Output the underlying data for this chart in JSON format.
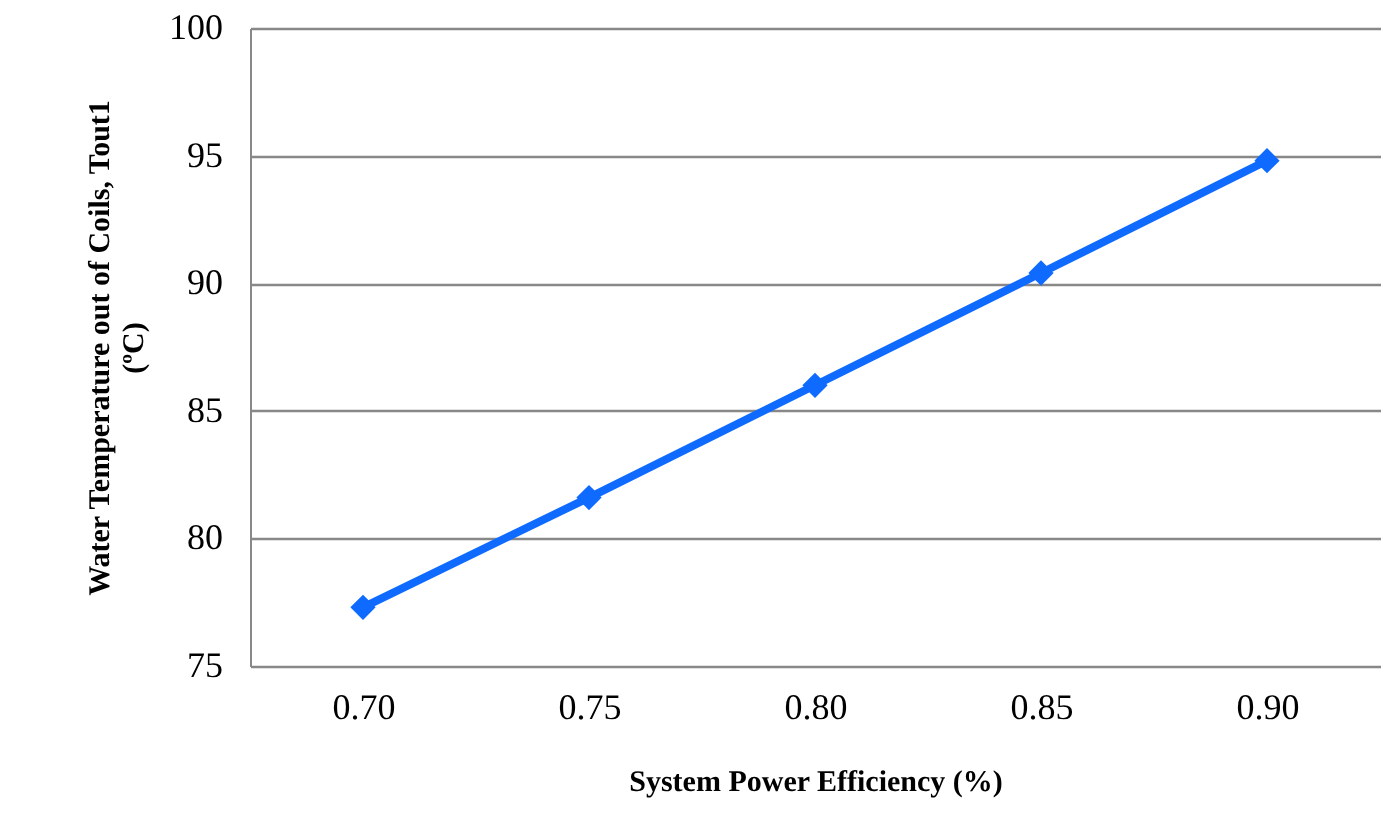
{
  "chart_data": {
    "type": "line",
    "xlabel": "System Power Efficiency (%)",
    "ylabel": "Water Temperature out of Coils, Tout1 (ºC)",
    "categories": [
      "0.70",
      "0.75",
      "0.80",
      "0.85",
      "0.90"
    ],
    "series": [
      {
        "color": "#0f6bff",
        "values": [
          77.3,
          81.6,
          86.0,
          90.4,
          94.8
        ]
      }
    ],
    "ylim": [
      75,
      100
    ],
    "yticks": [
      75,
      80,
      85,
      90,
      95,
      100
    ],
    "grid": "y",
    "marker": "diamond",
    "line_style": "solid"
  }
}
